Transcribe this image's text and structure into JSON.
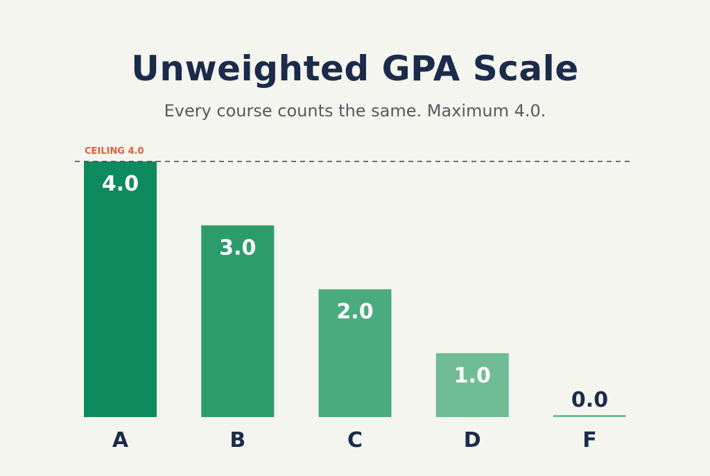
{
  "chart_data": {
    "type": "bar",
    "title": "Unweighted GPA Scale",
    "subtitle": "Every course counts the same. Maximum 4.0.",
    "categories": [
      "A",
      "B",
      "C",
      "D",
      "F"
    ],
    "values": [
      4.0,
      3.0,
      2.0,
      1.0,
      0.0
    ],
    "data_labels": [
      "4.0",
      "3.0",
      "2.0",
      "1.0",
      "0.0"
    ],
    "ylim": [
      0,
      4
    ],
    "grid": false,
    "reference_line": {
      "value": 4.0,
      "label": "CEILING 4.0",
      "style": "dashed"
    },
    "colors": {
      "bars": [
        "#0e8a5f",
        "#2d9c6d",
        "#4aab7e",
        "#70bd95",
        "#70bd95"
      ],
      "reference_line": "#3a4250",
      "reference_label": "#d9603b",
      "bar_label": "#ffffff",
      "bar_label_outside": "#1b2b4a",
      "category_label": "#1b2b4a"
    }
  }
}
